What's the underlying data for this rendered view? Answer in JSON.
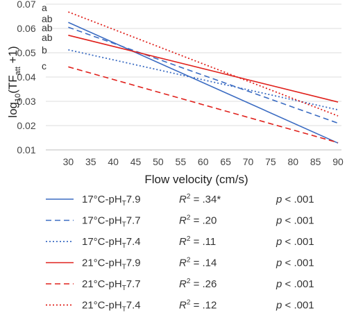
{
  "chart_data": {
    "type": "line",
    "xlabel": "Flow velocity (cm/s)",
    "ylabel": {
      "prefix": "log",
      "base": "10",
      "open": "(TF",
      "subscript": "att",
      "close": " +1)"
    },
    "xlim": [
      25,
      92
    ],
    "ylim": [
      0.01,
      0.07
    ],
    "x_ticks": [
      "30",
      "35",
      "40",
      "45",
      "50",
      "55",
      "60",
      "65",
      "70",
      "75",
      "80",
      "85",
      "90"
    ],
    "y_ticks": [
      "0.01",
      "0.02",
      "0.03",
      "0.04",
      "0.05",
      "0.06",
      "0.07"
    ],
    "grid": true,
    "legend_position": "below",
    "series": [
      {
        "name": "17°C-pHT7.9",
        "name_main": "17°C-pH",
        "name_sub": "T",
        "name_tail": "7.9",
        "x": [
          30,
          90
        ],
        "y": [
          0.0625,
          0.0128
        ],
        "color": "#3a6bc2",
        "dash": "solid",
        "letter": "ab",
        "r2": ".34*",
        "p": "p < .001"
      },
      {
        "name": "17°C-pHT7.7",
        "name_main": "17°C-pH",
        "name_sub": "T",
        "name_tail": "7.7",
        "x": [
          30,
          90
        ],
        "y": [
          0.0605,
          0.021
        ],
        "color": "#3a6bc2",
        "dash": "dashed",
        "letter": "ab",
        "r2": ".20",
        "p": "p < .001"
      },
      {
        "name": "17°C-pHT7.4",
        "name_main": "17°C-pH",
        "name_sub": "T",
        "name_tail": "7.4",
        "x": [
          30,
          90
        ],
        "y": [
          0.0512,
          0.0265
        ],
        "color": "#3a6bc2",
        "dash": "dotted",
        "letter": "b",
        "r2": ".11",
        "p": "p < .001"
      },
      {
        "name": "21°C-pHT7.9",
        "name_main": "21°C-pH",
        "name_sub": "T",
        "name_tail": "7.9",
        "x": [
          30,
          90
        ],
        "y": [
          0.0572,
          0.0297
        ],
        "color": "#e0201b",
        "dash": "solid",
        "letter": "ab",
        "r2": ".14",
        "p": "p < .001"
      },
      {
        "name": "21°C-pHT7.7",
        "name_main": "21°C-pH",
        "name_sub": "T",
        "name_tail": "7.7",
        "x": [
          30,
          90
        ],
        "y": [
          0.0442,
          0.013
        ],
        "color": "#e0201b",
        "dash": "dashed",
        "letter": "c",
        "r2": ".26",
        "p": "p < .001"
      },
      {
        "name": "21°C-pHT7.4",
        "name_main": "21°C-pH",
        "name_sub": "T",
        "name_tail": "7.4",
        "x": [
          30,
          90
        ],
        "y": [
          0.0668,
          0.024
        ],
        "color": "#e0201b",
        "dash": "dotted",
        "letter": "a",
        "r2": ".12",
        "p": "p < .001"
      }
    ],
    "r2_label": {
      "main": "R",
      "sup": "2",
      "eq": " = "
    }
  }
}
